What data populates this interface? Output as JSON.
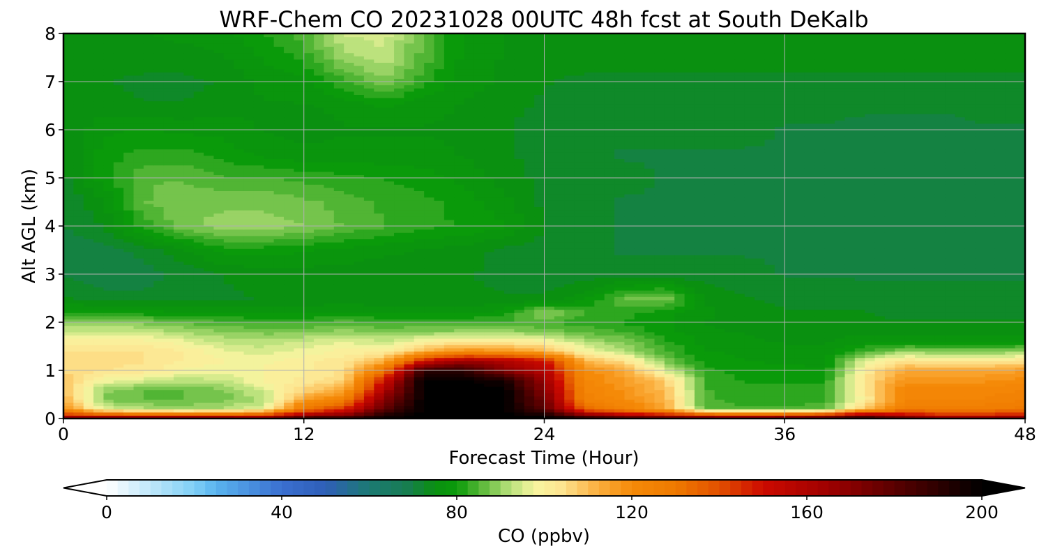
{
  "chart_data": {
    "type": "heatmap",
    "title": "WRF-Chem CO  20231028 00UTC 48h fcst at South DeKalb",
    "xlabel": "Forecast Time (Hour)",
    "ylabel": "Alt AGL (km)",
    "xlim": [
      0,
      48
    ],
    "ylim": [
      0,
      8
    ],
    "x_ticks": [
      "0",
      "12",
      "24",
      "36",
      "48"
    ],
    "y_ticks": [
      "0",
      "1",
      "2",
      "3",
      "4",
      "5",
      "6",
      "7",
      "8"
    ],
    "grid": true,
    "colorbar": {
      "label": "CO  (ppbv)",
      "range": [
        0,
        200
      ],
      "ticks": [
        "0",
        "40",
        "80",
        "120",
        "160",
        "200"
      ],
      "extend": "both",
      "min_color": "#ffffff",
      "max_color": "#000000",
      "stops": [
        [
          0,
          "#ffffff"
        ],
        [
          20,
          "#7fcff5"
        ],
        [
          25,
          "#5ab4ef"
        ],
        [
          40,
          "#3a6fd0"
        ],
        [
          50,
          "#2f5fb8"
        ],
        [
          60,
          "#1c7a72"
        ],
        [
          68,
          "#187c56"
        ],
        [
          75,
          "#0a9010"
        ],
        [
          80,
          "#0a9a0a"
        ],
        [
          86,
          "#5fba3c"
        ],
        [
          92,
          "#b6e07a"
        ],
        [
          98,
          "#f8f5a0"
        ],
        [
          104,
          "#fde490"
        ],
        [
          112,
          "#fbb040"
        ],
        [
          120,
          "#f58a08"
        ],
        [
          130,
          "#ef7a00"
        ],
        [
          140,
          "#e25000"
        ],
        [
          150,
          "#cc0a00"
        ],
        [
          165,
          "#9e0000"
        ],
        [
          180,
          "#5a0000"
        ],
        [
          200,
          "#000000"
        ]
      ]
    },
    "x": [
      0,
      2,
      4,
      6,
      8,
      10,
      12,
      14,
      16,
      18,
      20,
      22,
      24,
      26,
      28,
      30,
      32,
      34,
      36,
      38,
      40,
      42,
      44,
      46,
      48
    ],
    "y": [
      0,
      0.05,
      0.2,
      0.4,
      0.6,
      0.8,
      1.0,
      1.2,
      1.4,
      1.6,
      1.8,
      2.0,
      2.2,
      2.5,
      3.0,
      3.5,
      4.0,
      4.5,
      5.0,
      5.5,
      6.0,
      6.5,
      7.0,
      7.5,
      8.0
    ],
    "z": [
      [
        185,
        185,
        186,
        186,
        185,
        180,
        200,
        200,
        200,
        200,
        200,
        200,
        200,
        200,
        200,
        195,
        190,
        188,
        190,
        195,
        200,
        190,
        188,
        188,
        190
      ],
      [
        150,
        150,
        150,
        150,
        150,
        150,
        170,
        175,
        195,
        200,
        200,
        200,
        200,
        180,
        165,
        160,
        155,
        152,
        155,
        160,
        175,
        160,
        150,
        150,
        155
      ],
      [
        120,
        96,
        92,
        90,
        92,
        96,
        130,
        145,
        180,
        200,
        200,
        200,
        180,
        135,
        125,
        115,
        86,
        84,
        84,
        85,
        110,
        128,
        128,
        128,
        130
      ],
      [
        112,
        88,
        86,
        86,
        88,
        92,
        115,
        125,
        170,
        200,
        200,
        200,
        175,
        125,
        120,
        112,
        84,
        83,
        83,
        83,
        100,
        123,
        123,
        124,
        126
      ],
      [
        110,
        90,
        86,
        86,
        88,
        95,
        106,
        114,
        160,
        200,
        200,
        200,
        170,
        124,
        118,
        110,
        84,
        82,
        82,
        82,
        104,
        122,
        122,
        122,
        124
      ],
      [
        108,
        98,
        95,
        92,
        94,
        99,
        102,
        106,
        150,
        200,
        200,
        195,
        165,
        122,
        116,
        108,
        84,
        81,
        81,
        81,
        104,
        118,
        118,
        118,
        120
      ],
      [
        106,
        104,
        103,
        98,
        97,
        99,
        101,
        104,
        130,
        190,
        190,
        170,
        158,
        120,
        114,
        96,
        82,
        80,
        80,
        79,
        101,
        114,
        114,
        114,
        116
      ],
      [
        104,
        104,
        104,
        101,
        99,
        98,
        100,
        103,
        112,
        150,
        165,
        160,
        150,
        112,
        104,
        88,
        80,
        79,
        78,
        78,
        96,
        104,
        102,
        102,
        104
      ],
      [
        104,
        104,
        104,
        101,
        97,
        95,
        97,
        100,
        100,
        112,
        120,
        118,
        112,
        98,
        92,
        84,
        79,
        78,
        77,
        77,
        84,
        90,
        88,
        88,
        90
      ],
      [
        100,
        100,
        100,
        97,
        93,
        92,
        94,
        96,
        94,
        100,
        102,
        102,
        100,
        92,
        88,
        82,
        78,
        77,
        76,
        76,
        78,
        78,
        78,
        78,
        78
      ],
      [
        94,
        94,
        94,
        91,
        89,
        88,
        88,
        90,
        88,
        89,
        90,
        90,
        88,
        86,
        84,
        80,
        77,
        76,
        75,
        75,
        76,
        75,
        75,
        75,
        75
      ],
      [
        90,
        90,
        88,
        86,
        84,
        84,
        84,
        85,
        84,
        84,
        84,
        84,
        84,
        82,
        81,
        79,
        76,
        75,
        74,
        74,
        74,
        74,
        74,
        74,
        74
      ],
      [
        80,
        80,
        80,
        79,
        79,
        78,
        78,
        79,
        78,
        78,
        78,
        80,
        90,
        84,
        82,
        80,
        77,
        75,
        74,
        74,
        74,
        73,
        73,
        73,
        73
      ],
      [
        74,
        72,
        72,
        73,
        73,
        74,
        74,
        75,
        74,
        74,
        74,
        74,
        74,
        78,
        86,
        88,
        76,
        74,
        73,
        73,
        72,
        72,
        72,
        72,
        72
      ],
      [
        71,
        70,
        70,
        72,
        74,
        75,
        75,
        75,
        74,
        74,
        74,
        73,
        72,
        72,
        72,
        72,
        72,
        72,
        71,
        71,
        71,
        71,
        71,
        71,
        71
      ],
      [
        70,
        70,
        72,
        76,
        80,
        80,
        79,
        78,
        77,
        76,
        75,
        73,
        72,
        72,
        71,
        71,
        71,
        71,
        71,
        71,
        70,
        70,
        70,
        70,
        70
      ],
      [
        71,
        74,
        82,
        88,
        90,
        90,
        89,
        86,
        84,
        82,
        81,
        79,
        74,
        72,
        71,
        71,
        70,
        70,
        71,
        71,
        70,
        70,
        70,
        70,
        70
      ],
      [
        71,
        76,
        86,
        88,
        88,
        88,
        87,
        85,
        83,
        82,
        80,
        77,
        73,
        72,
        71,
        71,
        70,
        70,
        71,
        71,
        70,
        70,
        70,
        70,
        70
      ],
      [
        73,
        80,
        86,
        86,
        84,
        84,
        83,
        82,
        81,
        80,
        78,
        75,
        73,
        72,
        72,
        71,
        71,
        71,
        71,
        70,
        70,
        70,
        70,
        69,
        69
      ],
      [
        73,
        80,
        82,
        82,
        80,
        78,
        77,
        77,
        77,
        77,
        76,
        74,
        73,
        72,
        71,
        71,
        71,
        71,
        71,
        70,
        70,
        70,
        69,
        70,
        70
      ],
      [
        74,
        78,
        79,
        78,
        78,
        76,
        75,
        76,
        76,
        76,
        76,
        74,
        72,
        72,
        72,
        72,
        72,
        72,
        71,
        71,
        70,
        70,
        70,
        71,
        71
      ],
      [
        75,
        75,
        74,
        74,
        75,
        76,
        76,
        77,
        79,
        77,
        76,
        75,
        73,
        72,
        72,
        72,
        72,
        72,
        72,
        72,
        72,
        72,
        72,
        72,
        72
      ],
      [
        75,
        74,
        73,
        73,
        74,
        77,
        78,
        83,
        88,
        82,
        77,
        76,
        74,
        73,
        73,
        73,
        73,
        73,
        73,
        73,
        73,
        73,
        73,
        73,
        73
      ],
      [
        76,
        75,
        75,
        75,
        76,
        79,
        82,
        90,
        93,
        85,
        78,
        76,
        75,
        75,
        75,
        75,
        75,
        75,
        75,
        75,
        75,
        75,
        75,
        75,
        75
      ],
      [
        76,
        76,
        76,
        77,
        78,
        81,
        85,
        94,
        95,
        86,
        78,
        76,
        76,
        76,
        76,
        76,
        76,
        76,
        76,
        76,
        76,
        76,
        76,
        76,
        76
      ]
    ]
  }
}
